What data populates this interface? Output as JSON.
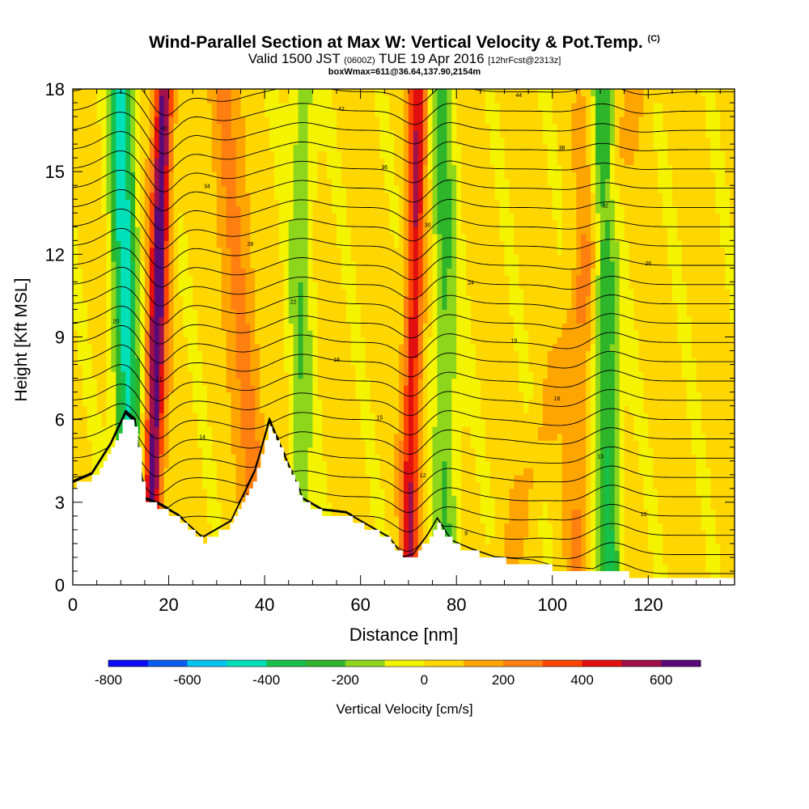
{
  "header": {
    "title": "Wind-Parallel Section at Max W: Vertical Velocity & Pot.Temp.",
    "copyright": "(C)",
    "valid_prefix": "Valid 1500 JST",
    "valid_utc": "(0600Z)",
    "valid_date": "TUE 19 Apr 2016",
    "forecast": "[12hrFcst@2313z]",
    "boxinfo": "boxWmax=611@36.64,137.90,2154m"
  },
  "colors": {
    "terrain": "#ffffff",
    "scale": [
      "#0b0bf5",
      "#0a5cf0",
      "#00c4f0",
      "#00e0b8",
      "#17c04a",
      "#2fb52a",
      "#8ed61c",
      "#f4f400",
      "#ffd700",
      "#ffa500",
      "#ff7f11",
      "#ff4500",
      "#e10f0f",
      "#a0104a",
      "#5a0a78"
    ]
  },
  "chart_data": {
    "type": "heatmap",
    "xlabel": "Distance [nm]",
    "ylabel": "Height [Kft MSL]",
    "xlim": [
      0,
      138
    ],
    "ylim": [
      0,
      18
    ],
    "xticks": [
      0,
      20,
      40,
      60,
      80,
      100,
      120
    ],
    "yticks": [
      0,
      3,
      6,
      9,
      12,
      15,
      18
    ],
    "colorbar": {
      "label": "Vertical Velocity [cm/s]",
      "min": -800,
      "max": 700,
      "step": 100,
      "tick_values": [
        -800,
        -600,
        -400,
        -200,
        0,
        200,
        400,
        600
      ]
    },
    "updraft_bands": [
      {
        "x_bottom": 16,
        "x_top": 19,
        "w_max": 650
      },
      {
        "x_bottom": 40,
        "x_top": 31,
        "w_max": 250
      },
      {
        "x_bottom": 70,
        "x_top": 72,
        "w_max": 450
      },
      {
        "x_bottom": 105,
        "x_top": 108,
        "w_max": 150
      },
      {
        "x_bottom": 89,
        "x_top": 118,
        "w_max": 100
      }
    ],
    "downdraft_bands": [
      {
        "x_bottom": 12,
        "x_top": 10,
        "w_min": -480
      },
      {
        "x_bottom": 78,
        "x_top": 77,
        "w_min": -250
      },
      {
        "x_bottom": 47,
        "x_top": 48,
        "w_min": -200
      },
      {
        "x_bottom": 112,
        "x_top": 110,
        "w_min": -350
      }
    ],
    "terrain_profile": {
      "x": [
        0,
        4,
        8,
        11,
        13,
        15,
        18,
        22,
        27,
        33,
        38,
        41,
        44,
        48,
        52,
        57,
        61,
        66,
        69,
        71,
        74,
        76,
        79,
        83,
        88,
        96,
        100,
        107,
        113,
        122,
        130,
        138
      ],
      "height": [
        3.6,
        3.9,
        5.0,
        6.1,
        5.8,
        3.0,
        2.8,
        2.4,
        1.6,
        2.2,
        4.0,
        5.8,
        4.6,
        3.0,
        2.6,
        2.5,
        2.1,
        1.6,
        0.9,
        1.0,
        1.7,
        2.3,
        1.5,
        1.2,
        0.9,
        0.8,
        0.6,
        0.5,
        0.4,
        0.3,
        0.3,
        0.3
      ]
    },
    "theta_contours": {
      "count": 26,
      "labels": [
        "6",
        "8",
        "9",
        "10",
        "11",
        "12",
        "13",
        "14",
        "15",
        "16",
        "17",
        "18",
        "19",
        "20",
        "22",
        "24",
        "26",
        "28",
        "30",
        "32",
        "34",
        "36",
        "38",
        "40",
        "42",
        "44"
      ]
    }
  }
}
